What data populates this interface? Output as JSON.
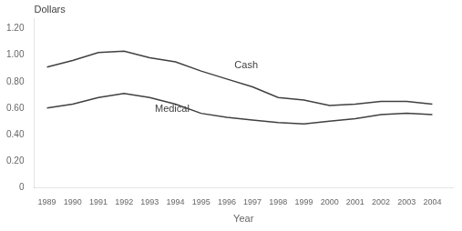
{
  "chart_data": {
    "type": "line",
    "xlabel": "Year",
    "ylabel": "Dollars",
    "x": [
      1989,
      1990,
      1991,
      1992,
      1993,
      1994,
      1995,
      1996,
      1997,
      1998,
      1999,
      2000,
      2001,
      2002,
      2003,
      2004
    ],
    "series": [
      {
        "name": "Cash",
        "color": "#404040",
        "values": [
          0.91,
          0.96,
          1.02,
          1.03,
          0.98,
          0.95,
          0.88,
          0.82,
          0.76,
          0.68,
          0.66,
          0.62,
          0.63,
          0.65,
          0.65,
          0.63
        ]
      },
      {
        "name": "Medical",
        "color": "#404040",
        "values": [
          0.6,
          0.63,
          0.68,
          0.71,
          0.68,
          0.63,
          0.56,
          0.53,
          0.51,
          0.49,
          0.48,
          0.5,
          0.52,
          0.55,
          0.56,
          0.55
        ]
      }
    ],
    "annotations": [
      {
        "text": "Cash",
        "x": 1996.3,
        "y": 0.92,
        "color": "#404040"
      },
      {
        "text": "Medical",
        "x": 1993.2,
        "y": 0.595,
        "color": "#404040"
      }
    ],
    "ylabel_color": "#404040",
    "background_color": "#ffffff",
    "xlim": [
      1988.5,
      2004.8
    ],
    "xticks": [
      1989,
      1990,
      1991,
      1992,
      1993,
      1994,
      1995,
      1996,
      1997,
      1998,
      1999,
      2000,
      2001,
      2002,
      2003,
      2004
    ],
    "ylim": [
      0,
      1.28
    ],
    "yticks": [
      0,
      {
        "value": 0.2,
        "label": "0.20"
      },
      {
        "value": 0.4,
        "label": "0.40"
      },
      {
        "value": 0.6,
        "label": "0.60"
      },
      {
        "value": 0.8,
        "label": "0.80"
      },
      {
        "value": 1.0,
        "label": "1.00"
      },
      {
        "value": 1.2,
        "label": "1.20"
      }
    ],
    "grid": false
  }
}
